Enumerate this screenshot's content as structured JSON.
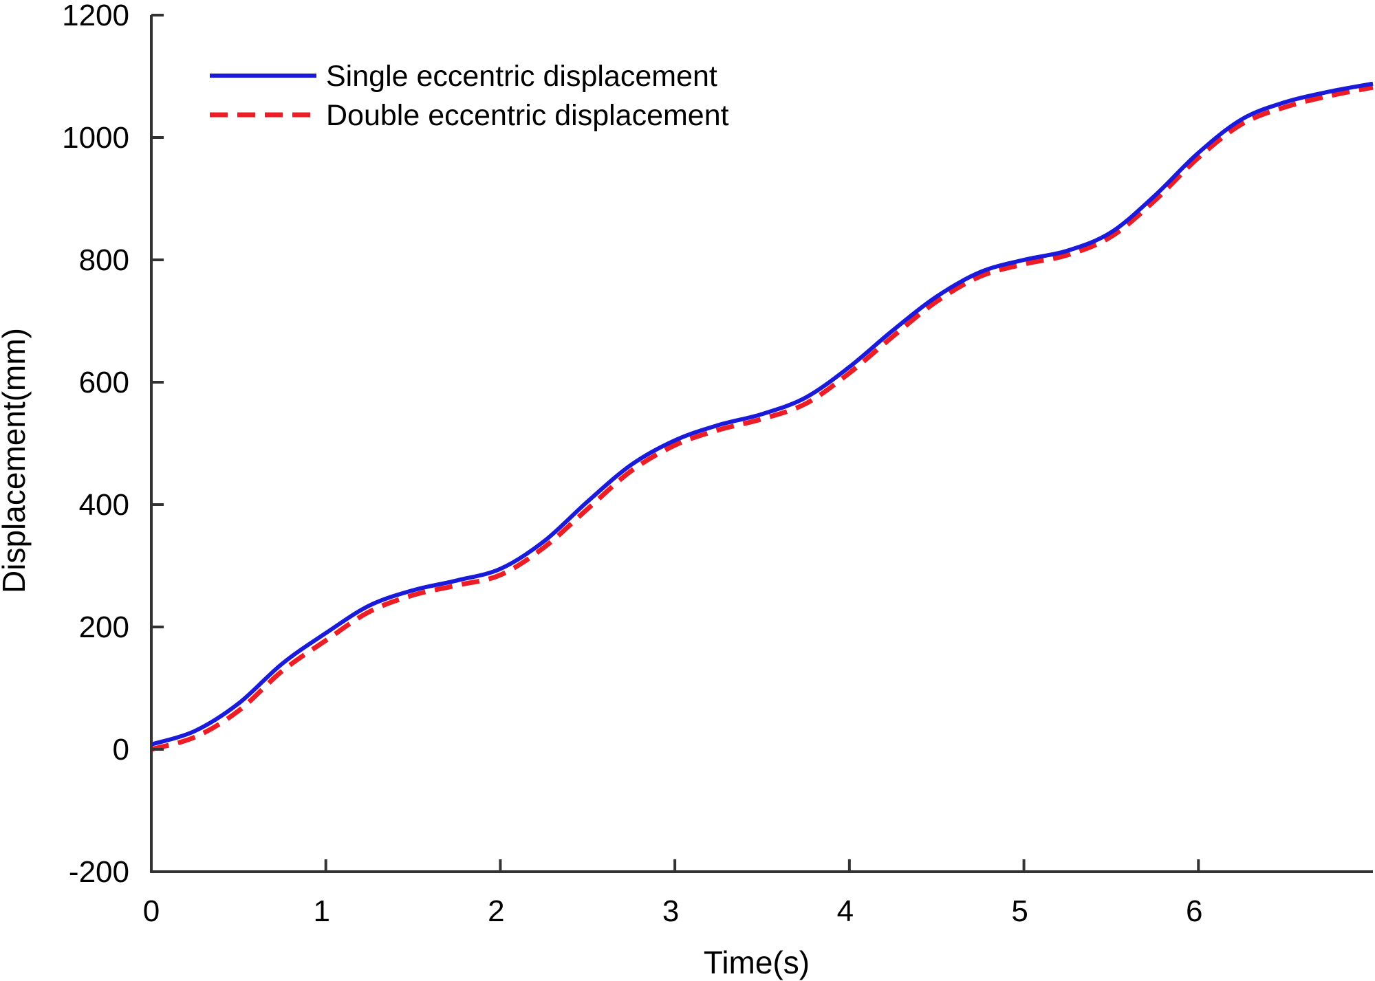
{
  "chart_data": {
    "type": "line",
    "title": "",
    "xlabel": "Time(s)",
    "ylabel": "Displacement(mm)",
    "xlim": [
      0,
      7
    ],
    "ylim": [
      -200,
      1200
    ],
    "x_ticks": [
      0,
      1,
      2,
      3,
      4,
      5,
      6
    ],
    "x_tick_labels": [
      "0",
      "1",
      "2",
      "3",
      "4",
      "5",
      "6"
    ],
    "y_ticks": [
      -200,
      0,
      200,
      400,
      600,
      800,
      1000,
      1200
    ],
    "y_tick_labels": [
      "-200",
      "0",
      "200",
      "400",
      "600",
      "800",
      "1000",
      "1200"
    ],
    "grid": false,
    "legend_position": "top-left",
    "series": [
      {
        "name": "Single eccentric displacement",
        "color": "#1a1adb",
        "style": "solid",
        "x": [
          0,
          0.25,
          0.5,
          0.75,
          1.0,
          1.25,
          1.5,
          1.75,
          2.0,
          2.25,
          2.5,
          2.75,
          3.0,
          3.25,
          3.5,
          3.75,
          4.0,
          4.25,
          4.5,
          4.75,
          5.0,
          5.25,
          5.5,
          5.75,
          6.0,
          6.25,
          6.5,
          6.75,
          7.0
        ],
        "y": [
          8,
          30,
          75,
          140,
          190,
          235,
          260,
          276,
          295,
          340,
          405,
          465,
          505,
          530,
          548,
          575,
          625,
          685,
          740,
          780,
          800,
          815,
          845,
          905,
          975,
          1030,
          1058,
          1075,
          1088
        ]
      },
      {
        "name": "Double eccentric displacement",
        "color": "#ee1c24",
        "style": "dashed",
        "x": [
          0,
          0.25,
          0.5,
          0.75,
          1.0,
          1.25,
          1.5,
          1.75,
          2.0,
          2.25,
          2.5,
          2.75,
          3.0,
          3.25,
          3.5,
          3.75,
          4.0,
          4.25,
          4.5,
          4.75,
          5.0,
          5.25,
          5.5,
          5.75,
          6.0,
          6.25,
          6.5,
          6.75,
          7.0
        ],
        "y": [
          0,
          20,
          63,
          128,
          178,
          225,
          252,
          268,
          285,
          330,
          393,
          455,
          497,
          522,
          540,
          565,
          615,
          675,
          732,
          773,
          793,
          808,
          838,
          897,
          967,
          1022,
          1050,
          1068,
          1082
        ]
      }
    ]
  }
}
